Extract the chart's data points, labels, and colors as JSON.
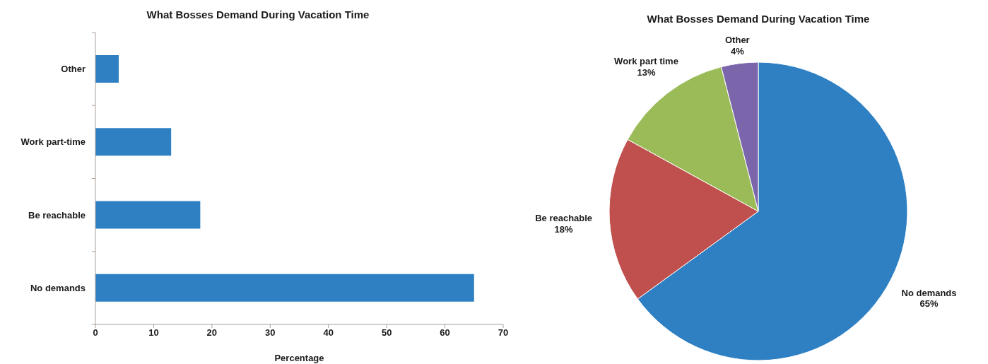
{
  "chart_data": [
    {
      "type": "bar",
      "orientation": "horizontal",
      "title": "What Bosses Demand During Vacation Time",
      "xlabel": "Percentage",
      "categories": [
        "Other",
        "Work part-time",
        "Be reachable",
        "No demands"
      ],
      "values": [
        4,
        13,
        18,
        65
      ],
      "color": "#2e80c3",
      "xlim": [
        0,
        70
      ],
      "xticks": [
        0,
        10,
        20,
        30,
        40,
        50,
        60,
        70
      ]
    },
    {
      "type": "pie",
      "title": "What Bosses Demand During Vacation Time",
      "categories": [
        "No demands",
        "Be reachable",
        "Work part time",
        "Other"
      ],
      "values": [
        65,
        18,
        13,
        4
      ],
      "colors": [
        "#2e80c3",
        "#c0504d",
        "#9bbb59",
        "#7b66ac"
      ],
      "value_labels": [
        "65%",
        "18%",
        "13%",
        "4%"
      ]
    }
  ]
}
